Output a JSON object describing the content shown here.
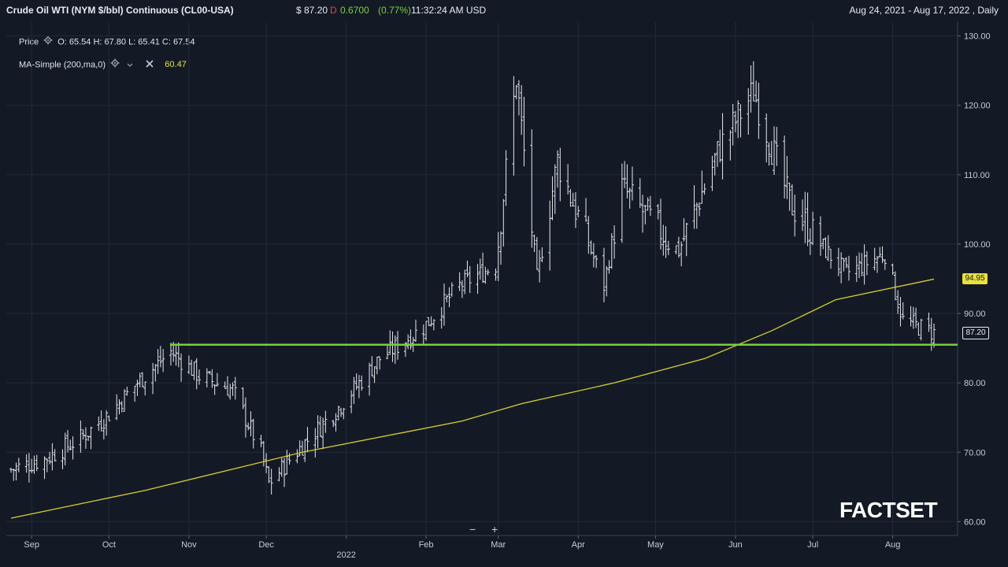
{
  "header": {
    "title": "Crude Oil WTI (NYM $/bbl) Continuous (CL00-USA)",
    "price": "$ 87.20",
    "flag": "D",
    "change": "0.6700",
    "change_pct": "(0.77%)",
    "time": "11:32:24 AM USD",
    "range": "Aug 24, 2021 - Aug 17, 2022 , Daily"
  },
  "legend": {
    "price_label": "Price",
    "ohlc": "O: 65.54  H: 67.80  L: 65.41  C: 67.54",
    "ma_label": "MA-Simple (200,ma,0)",
    "ma_value": "60.47"
  },
  "zoom": {
    "minus": "−",
    "plus": "+"
  },
  "brand": "FACTSET",
  "colors": {
    "price_bars": "#e6e8ec",
    "ma": "#d7cf2e",
    "support": "#7ad03b",
    "background": "#131a26"
  },
  "chart_data": {
    "type": "ohlc",
    "x_range": [
      "2021-08-24",
      "2022-08-17"
    ],
    "ylim": [
      58,
      132
    ],
    "y_ticks": [
      "60.00",
      "70.00",
      "80.00",
      "90.00",
      "100.00",
      "110.00",
      "120.00",
      "130.00"
    ],
    "x_ticks": [
      "Sep",
      "Oct",
      "Nov",
      "Dec",
      "Feb",
      "Mar",
      "Apr",
      "May",
      "Jun",
      "Jul",
      "Aug"
    ],
    "x_year_label": "2022",
    "price_closes": [
      {
        "date": "2021-08-24",
        "close": 67.5
      },
      {
        "date": "2021-09-06",
        "close": 69.0
      },
      {
        "date": "2021-09-20",
        "close": 72.0
      },
      {
        "date": "2021-10-01",
        "close": 75.5
      },
      {
        "date": "2021-10-12",
        "close": 80.0
      },
      {
        "date": "2021-10-25",
        "close": 84.5
      },
      {
        "date": "2021-11-05",
        "close": 81.0
      },
      {
        "date": "2021-11-18",
        "close": 79.0
      },
      {
        "date": "2021-11-29",
        "close": 70.0
      },
      {
        "date": "2021-12-02",
        "close": 65.5
      },
      {
        "date": "2021-12-15",
        "close": 71.0
      },
      {
        "date": "2021-12-28",
        "close": 76.0
      },
      {
        "date": "2022-01-14",
        "close": 83.5
      },
      {
        "date": "2022-01-31",
        "close": 88.0
      },
      {
        "date": "2022-02-14",
        "close": 94.0
      },
      {
        "date": "2022-02-28",
        "close": 97.0
      },
      {
        "date": "2022-03-08",
        "close": 124.0
      },
      {
        "date": "2022-03-16",
        "close": 95.0
      },
      {
        "date": "2022-03-24",
        "close": 112.0
      },
      {
        "date": "2022-04-11",
        "close": 94.0
      },
      {
        "date": "2022-04-18",
        "close": 108.0
      },
      {
        "date": "2022-05-10",
        "close": 99.0
      },
      {
        "date": "2022-05-26",
        "close": 114.0
      },
      {
        "date": "2022-06-08",
        "close": 122.0
      },
      {
        "date": "2022-06-22",
        "close": 106.0
      },
      {
        "date": "2022-07-05",
        "close": 99.5
      },
      {
        "date": "2022-07-14",
        "close": 95.8
      },
      {
        "date": "2022-07-29",
        "close": 98.6
      },
      {
        "date": "2022-08-05",
        "close": 89.0
      },
      {
        "date": "2022-08-17",
        "close": 87.2
      }
    ],
    "ma_series": {
      "name": "MA-Simple (200,ma,0)",
      "points": [
        {
          "date": "2021-08-24",
          "value": 60.5
        },
        {
          "date": "2021-10-15",
          "value": 64.5
        },
        {
          "date": "2021-12-15",
          "value": 70.0
        },
        {
          "date": "2022-02-15",
          "value": 74.5
        },
        {
          "date": "2022-03-10",
          "value": 77.0
        },
        {
          "date": "2022-04-15",
          "value": 80.0
        },
        {
          "date": "2022-05-20",
          "value": 83.5
        },
        {
          "date": "2022-06-15",
          "value": 87.5
        },
        {
          "date": "2022-07-10",
          "value": 92.0
        },
        {
          "date": "2022-08-17",
          "value": 94.95
        }
      ]
    },
    "support_level": {
      "value": 85.5,
      "from": "2021-10-25",
      "to": "2022-08-17"
    },
    "last_price_tag": "87.20",
    "ma_tag": "94.95"
  }
}
